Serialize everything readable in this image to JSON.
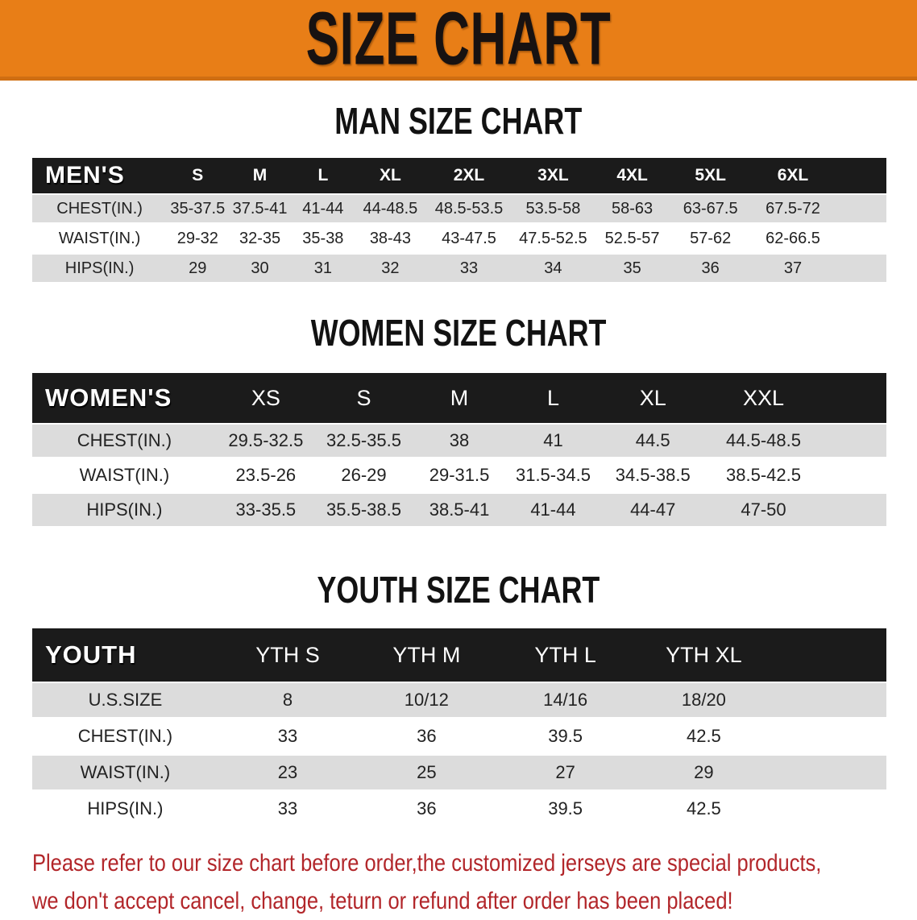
{
  "banner": {
    "title": "SIZE CHART",
    "bg_color": "#E87E17",
    "text_color": "#181211"
  },
  "sections": [
    {
      "heading": "MAN SIZE CHART",
      "table": {
        "label": "MEN'S",
        "sizes": [
          "S",
          "M",
          "L",
          "XL",
          "2XL",
          "3XL",
          "4XL",
          "5XL",
          "6XL"
        ],
        "rows": [
          {
            "label": "CHEST(IN.)",
            "values": [
              "35-37.5",
              "37.5-41",
              "41-44",
              "44-48.5",
              "48.5-53.5",
              "53.5-58",
              "58-63",
              "63-67.5",
              "67.5-72"
            ]
          },
          {
            "label": "WAIST(IN.)",
            "values": [
              "29-32",
              "32-35",
              "35-38",
              "38-43",
              "43-47.5",
              "47.5-52.5",
              "52.5-57",
              "57-62",
              "62-66.5"
            ]
          },
          {
            "label": "HIPS(IN.)",
            "values": [
              "29",
              "30",
              "31",
              "32",
              "33",
              "34",
              "35",
              "36",
              "37"
            ]
          }
        ]
      }
    },
    {
      "heading": "WOMEN SIZE CHART",
      "table": {
        "label": "WOMEN'S",
        "sizes": [
          "XS",
          "S",
          "M",
          "L",
          "XL",
          "XXL"
        ],
        "rows": [
          {
            "label": "CHEST(IN.)",
            "values": [
              "29.5-32.5",
              "32.5-35.5",
              "38",
              "41",
              "44.5",
              "44.5-48.5"
            ]
          },
          {
            "label": "WAIST(IN.)",
            "values": [
              "23.5-26",
              "26-29",
              "29-31.5",
              "31.5-34.5",
              "34.5-38.5",
              "38.5-42.5"
            ]
          },
          {
            "label": "HIPS(IN.)",
            "values": [
              "33-35.5",
              "35.5-38.5",
              "38.5-41",
              "41-44",
              "44-47",
              "47-50"
            ]
          }
        ]
      }
    },
    {
      "heading": "YOUTH SIZE CHART",
      "table": {
        "label": "YOUTH",
        "sizes": [
          "YTH S",
          "YTH M",
          "YTH L",
          "YTH XL"
        ],
        "rows": [
          {
            "label": "U.S.SIZE",
            "values": [
              "8",
              "10/12",
              "14/16",
              "18/20"
            ]
          },
          {
            "label": "CHEST(IN.)",
            "values": [
              "33",
              "36",
              "39.5",
              "42.5"
            ]
          },
          {
            "label": "WAIST(IN.)",
            "values": [
              "23",
              "25",
              "27",
              "29"
            ]
          },
          {
            "label": "HIPS(IN.)",
            "values": [
              "33",
              "36",
              "39.5",
              "42.5"
            ]
          }
        ]
      }
    }
  ],
  "footer": {
    "line1": "Please refer to our size chart before order,the customized jerseys are special products,",
    "line2": "we don't accept cancel, change, teturn or refund after order has been placed!",
    "text_color": "#B2262A"
  },
  "colors": {
    "header_bar": "#1B1B1B",
    "stripe_gray": "#DCDCDC",
    "banner_orange": "#E87E17"
  }
}
